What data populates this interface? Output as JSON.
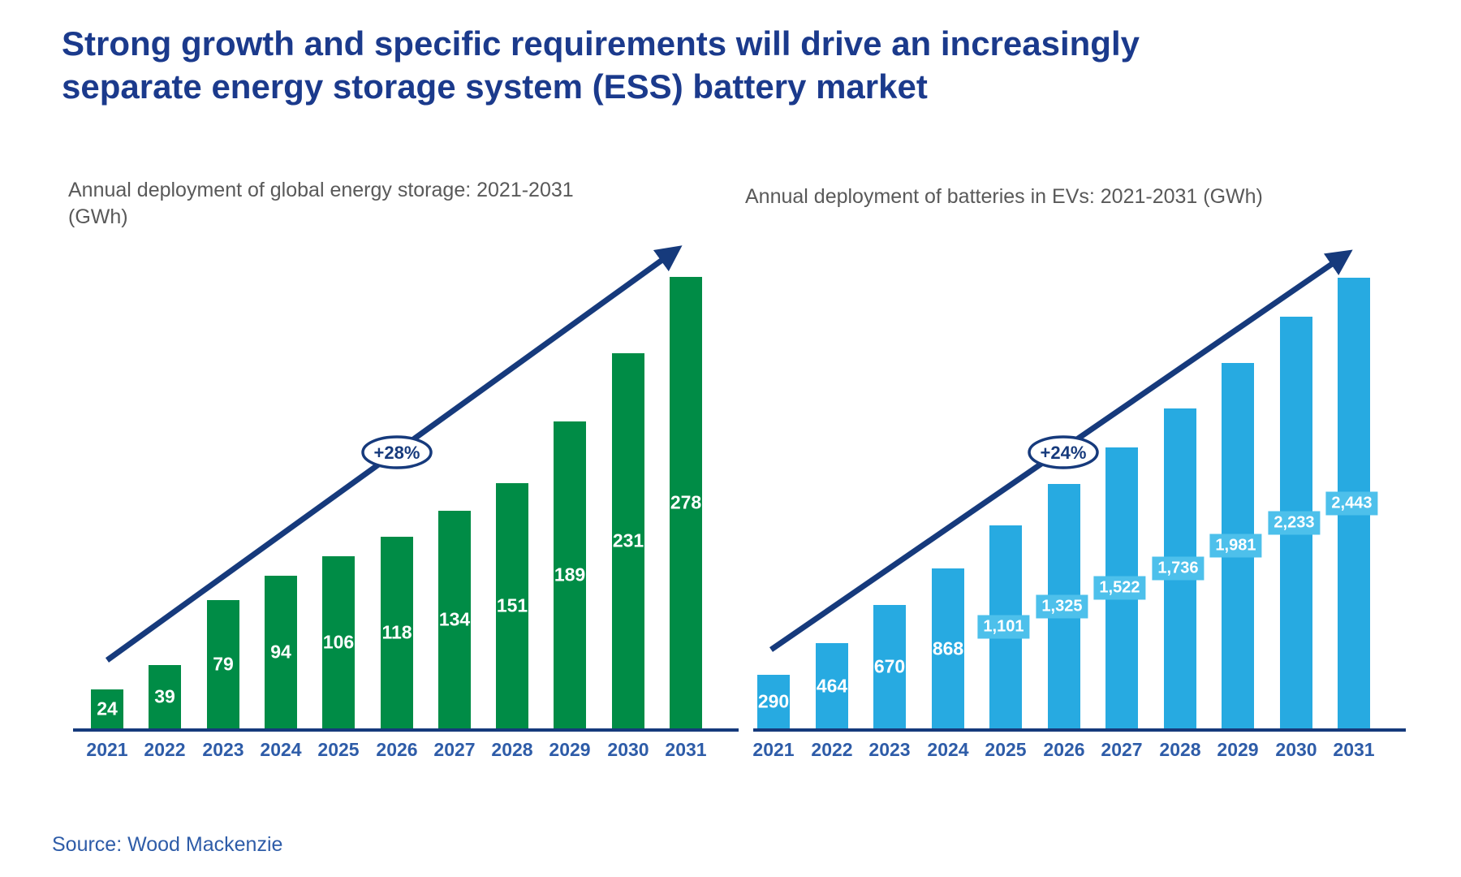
{
  "title": "Strong growth and specific requirements will drive an increasingly separate energy storage system (ESS) battery market",
  "source_note": "Source: Wood Mackenzie",
  "colors": {
    "title_navy": "#1b3a8c",
    "arrow_navy": "#163a7c",
    "year_label_blue": "#2e5ca8",
    "subtitle_gray": "#595959",
    "ess_green": "#008c46",
    "ev_blue": "#27aae1",
    "ev_label_box_blue": "#4dc0eb",
    "value_label_white": "#ffffff"
  },
  "chart_data": [
    {
      "type": "bar",
      "subtitle": "Annual deployment of global energy storage: 2021-2031 (GWh)",
      "unit": "GWh",
      "categories": [
        "2021",
        "2022",
        "2023",
        "2024",
        "2025",
        "2026",
        "2027",
        "2028",
        "2029",
        "2030",
        "2031"
      ],
      "values": [
        24,
        39,
        79,
        94,
        106,
        118,
        134,
        151,
        189,
        231,
        278
      ],
      "value_labels": [
        "24",
        "39",
        "79",
        "94",
        "106",
        "118",
        "134",
        "151",
        "189",
        "231",
        "278"
      ],
      "growth_annotation": "+28%",
      "bar_color": "#008c46",
      "ylim": [
        0,
        290
      ],
      "xlabel": "",
      "ylabel": "",
      "legend": "none",
      "grid": "off"
    },
    {
      "type": "bar",
      "subtitle": "Annual deployment of batteries in EVs: 2021-2031 (GWh)",
      "unit": "GWh",
      "categories": [
        "2021",
        "2022",
        "2023",
        "2024",
        "2025",
        "2026",
        "2027",
        "2028",
        "2029",
        "2030",
        "2031"
      ],
      "values": [
        290,
        464,
        670,
        868,
        1101,
        1325,
        1522,
        1736,
        1981,
        2233,
        2443
      ],
      "value_labels": [
        "290",
        "464",
        "670",
        "868",
        "1,101",
        "1,325",
        "1,522",
        "1,736",
        "1,981",
        "2,233",
        "2,443"
      ],
      "growth_annotation": "+24%",
      "bar_color": "#27aae1",
      "label_box_color": "#4dc0eb",
      "ylim": [
        0,
        2600
      ],
      "xlabel": "",
      "ylabel": "",
      "legend": "none",
      "grid": "off"
    }
  ]
}
